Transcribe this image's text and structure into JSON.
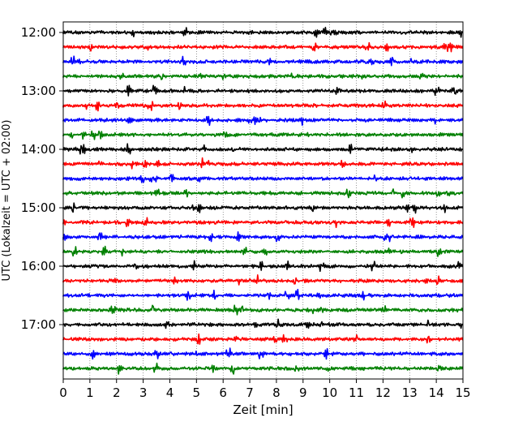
{
  "chart_data": {
    "type": "line",
    "title": "",
    "xlabel": "Zeit  [min]",
    "ylabel": "UTC (Lokalzeit = UTC + 02:00)",
    "xlim": [
      0,
      15
    ],
    "x_ticks": [
      "0",
      "1",
      "2",
      "3",
      "4",
      "5",
      "6",
      "7",
      "8",
      "9",
      "10",
      "11",
      "12",
      "13",
      "14",
      "15"
    ],
    "y_ticks": [
      "12:00",
      "13:00",
      "14:00",
      "15:00",
      "16:00",
      "17:00"
    ],
    "grid": "vertical dotted",
    "legend": "none",
    "colors": [
      "#000000",
      "#ff0000",
      "#0000ff",
      "#008000"
    ],
    "series": [
      {
        "row_time": "12:00",
        "color": "#000000"
      },
      {
        "row_time": "12:15",
        "color": "#ff0000"
      },
      {
        "row_time": "12:30",
        "color": "#0000ff"
      },
      {
        "row_time": "12:45",
        "color": "#008000"
      },
      {
        "row_time": "13:00",
        "color": "#000000"
      },
      {
        "row_time": "13:15",
        "color": "#ff0000"
      },
      {
        "row_time": "13:30",
        "color": "#0000ff"
      },
      {
        "row_time": "13:45",
        "color": "#008000"
      },
      {
        "row_time": "14:00",
        "color": "#000000"
      },
      {
        "row_time": "14:15",
        "color": "#ff0000"
      },
      {
        "row_time": "14:30",
        "color": "#0000ff"
      },
      {
        "row_time": "14:45",
        "color": "#008000"
      },
      {
        "row_time": "15:00",
        "color": "#000000"
      },
      {
        "row_time": "15:15",
        "color": "#ff0000"
      },
      {
        "row_time": "15:30",
        "color": "#0000ff"
      },
      {
        "row_time": "15:45",
        "color": "#008000"
      },
      {
        "row_time": "16:00",
        "color": "#000000"
      },
      {
        "row_time": "16:15",
        "color": "#ff0000"
      },
      {
        "row_time": "16:30",
        "color": "#0000ff"
      },
      {
        "row_time": "16:45",
        "color": "#008000"
      },
      {
        "row_time": "17:00",
        "color": "#000000"
      },
      {
        "row_time": "17:15",
        "color": "#ff0000"
      },
      {
        "row_time": "17:30",
        "color": "#0000ff"
      },
      {
        "row_time": "17:45",
        "color": "#008000"
      }
    ]
  }
}
